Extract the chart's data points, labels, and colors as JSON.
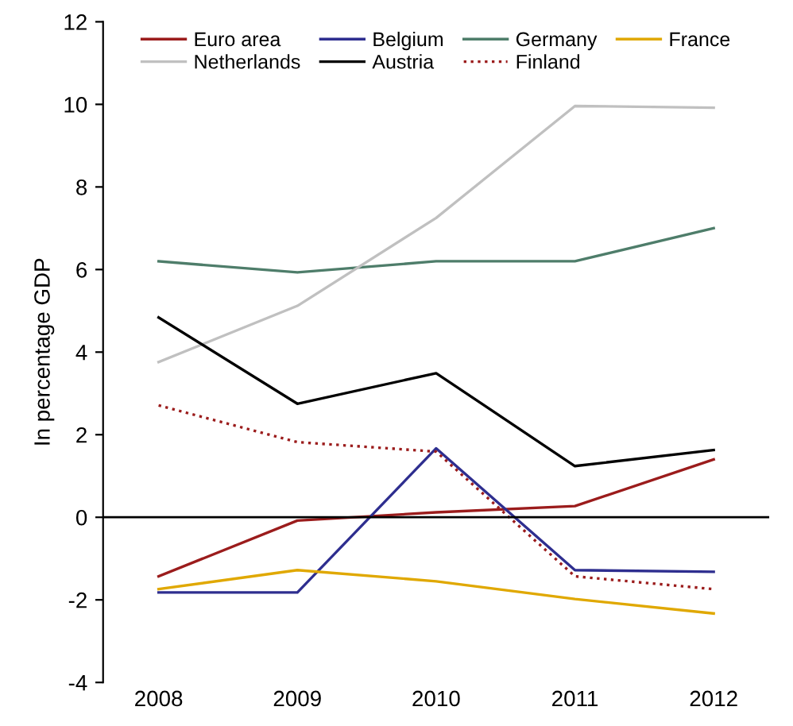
{
  "chart_data": {
    "type": "line",
    "ylabel": "In percentage GDP",
    "categories": [
      "2008",
      "2009",
      "2010",
      "2011",
      "2012"
    ],
    "series": [
      {
        "name": "Euro area",
        "color": "#9b1c1c",
        "values": [
          -1.43,
          -0.08,
          0.12,
          0.27,
          1.4
        ]
      },
      {
        "name": "Belgium",
        "color": "#2e2e8f",
        "values": [
          -1.82,
          -1.82,
          1.67,
          -1.28,
          -1.32
        ]
      },
      {
        "name": "Germany",
        "color": "#4e7d6a",
        "values": [
          6.2,
          5.93,
          6.2,
          6.2,
          7.0
        ]
      },
      {
        "name": "France",
        "color": "#e0a800",
        "values": [
          -1.74,
          -1.28,
          -1.55,
          -1.98,
          -2.33
        ]
      },
      {
        "name": "Netherlands",
        "color": "#c0c0c0",
        "values": [
          3.76,
          5.12,
          7.25,
          9.96,
          9.92
        ]
      },
      {
        "name": "Austria",
        "color": "#000000",
        "values": [
          4.84,
          2.75,
          3.49,
          1.24,
          1.63
        ]
      },
      {
        "name": "Finland",
        "color": "#9b1c1c",
        "line_style": "dotted",
        "values": [
          2.71,
          1.82,
          1.59,
          -1.43,
          -1.74
        ]
      }
    ],
    "ylim": [
      -4,
      12
    ],
    "yticks": [
      -4,
      -2,
      0,
      2,
      4,
      6,
      8,
      10,
      12
    ],
    "grid": false,
    "legend": "top",
    "marker": "none",
    "line_style": "solid",
    "ref_lines": [
      {
        "axis": "y",
        "value": 0,
        "color": "#000000"
      }
    ]
  }
}
